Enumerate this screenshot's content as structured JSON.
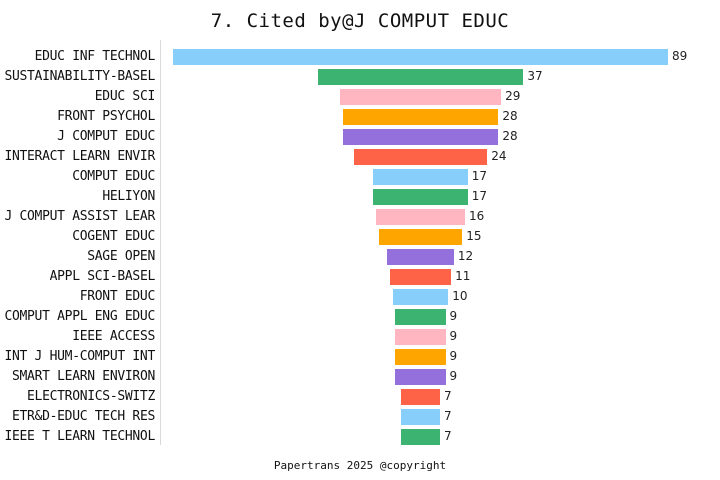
{
  "chart_data": {
    "type": "bar",
    "orientation": "horizontal",
    "style": "centered-funnel",
    "title": "7. Cited by@J COMPUT EDUC",
    "xlabel": "",
    "ylabel": "",
    "grid": false,
    "legend": null,
    "categories": [
      "EDUC INF TECHNOL",
      "SUSTAINABILITY-BASEL",
      "EDUC SCI",
      "FRONT PSYCHOL",
      "J COMPUT EDUC",
      "INTERACT LEARN ENVIR",
      "COMPUT EDUC",
      "HELIYON",
      "J COMPUT ASSIST LEAR",
      "COGENT EDUC",
      "SAGE OPEN",
      "APPL SCI-BASEL",
      "FRONT EDUC",
      "COMPUT APPL ENG EDUC",
      "IEEE ACCESS",
      "INT J HUM-COMPUT INT",
      "SMART LEARN ENVIRON",
      "ELECTRONICS-SWITZ",
      "ETR&D-EDUC TECH RES",
      "IEEE T LEARN TECHNOL"
    ],
    "values": [
      89,
      37,
      29,
      28,
      28,
      24,
      17,
      17,
      16,
      15,
      12,
      11,
      10,
      9,
      9,
      9,
      9,
      7,
      7,
      7
    ],
    "colors": [
      "#87CEFA",
      "#3CB371",
      "#FFB6C1",
      "#FFA500",
      "#9370DB",
      "#FF6347"
    ],
    "footer": "Papertrans 2025 @copyright"
  }
}
